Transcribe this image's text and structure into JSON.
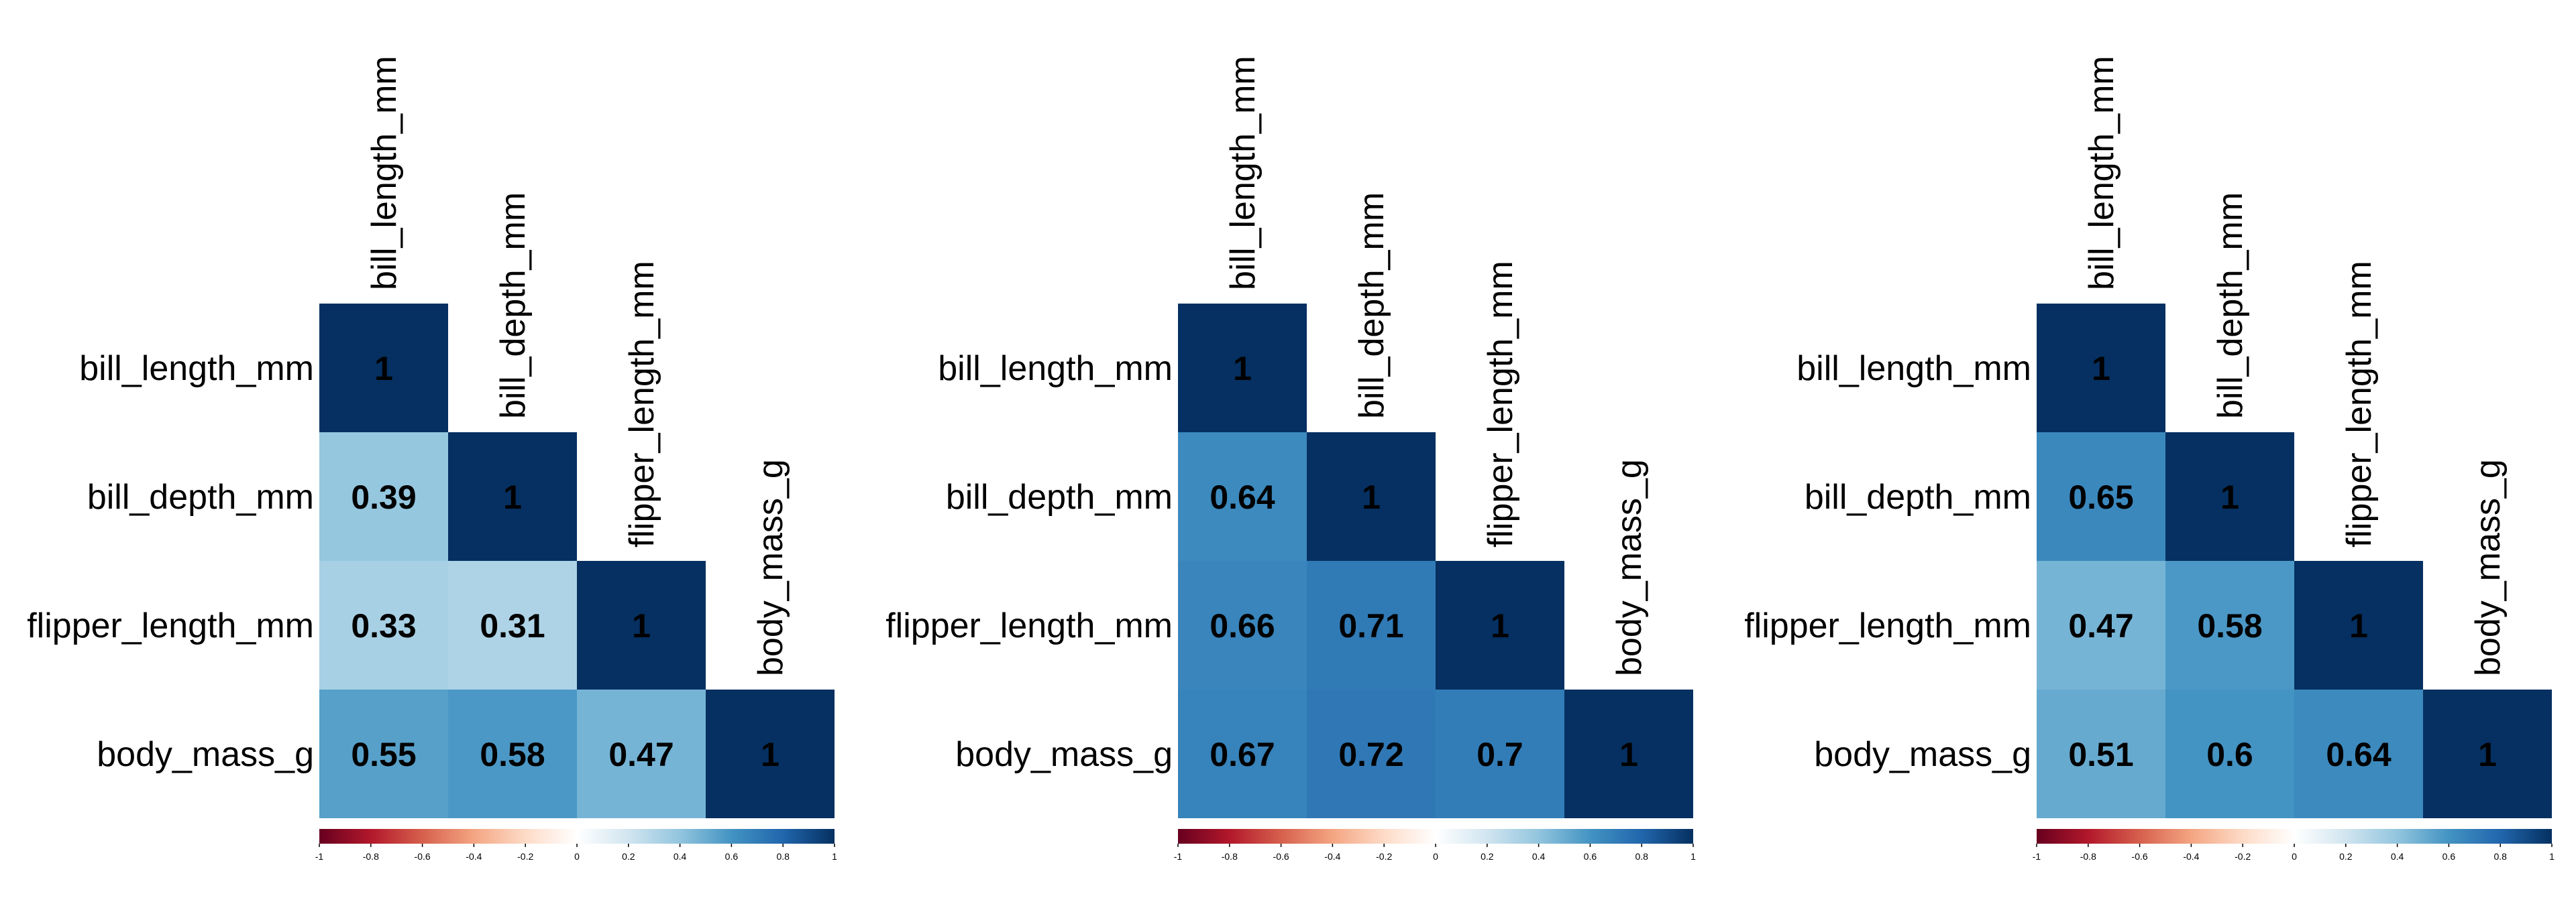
{
  "chart_data": [
    {
      "type": "heatmap",
      "variables": [
        "bill_length_mm",
        "bill_depth_mm",
        "flipper_length_mm",
        "body_mass_g"
      ],
      "lower_triangle": [
        [
          1
        ],
        [
          0.39,
          1
        ],
        [
          0.33,
          0.31,
          1
        ],
        [
          0.55,
          0.58,
          0.47,
          1
        ]
      ],
      "cell_labels": [
        [
          "1"
        ],
        [
          "0.39",
          "1"
        ],
        [
          "0.33",
          "0.31",
          "1"
        ],
        [
          "0.55",
          "0.58",
          "0.47",
          "1"
        ]
      ],
      "color_scale": {
        "range": [
          -1,
          1
        ],
        "ticks": [
          "-1",
          "-0.8",
          "-0.6",
          "-0.4",
          "-0.2",
          "0",
          "0.2",
          "0.4",
          "0.6",
          "0.8",
          "1"
        ]
      }
    },
    {
      "type": "heatmap",
      "variables": [
        "bill_length_mm",
        "bill_depth_mm",
        "flipper_length_mm",
        "body_mass_g"
      ],
      "lower_triangle": [
        [
          1
        ],
        [
          0.64,
          1
        ],
        [
          0.66,
          0.71,
          1
        ],
        [
          0.67,
          0.72,
          0.7,
          1
        ]
      ],
      "cell_labels": [
        [
          "1"
        ],
        [
          "0.64",
          "1"
        ],
        [
          "0.66",
          "0.71",
          "1"
        ],
        [
          "0.67",
          "0.72",
          "0.7",
          "1"
        ]
      ],
      "color_scale": {
        "range": [
          -1,
          1
        ],
        "ticks": [
          "-1",
          "-0.8",
          "-0.6",
          "-0.4",
          "-0.2",
          "0",
          "0.2",
          "0.4",
          "0.6",
          "0.8",
          "1"
        ]
      }
    },
    {
      "type": "heatmap",
      "variables": [
        "bill_length_mm",
        "bill_depth_mm",
        "flipper_length_mm",
        "body_mass_g"
      ],
      "lower_triangle": [
        [
          1
        ],
        [
          0.65,
          1
        ],
        [
          0.47,
          0.58,
          1
        ],
        [
          0.51,
          0.6,
          0.64,
          1
        ]
      ],
      "cell_labels": [
        [
          "1"
        ],
        [
          "0.65",
          "1"
        ],
        [
          "0.47",
          "0.58",
          "1"
        ],
        [
          "0.51",
          "0.6",
          "0.64",
          "1"
        ]
      ],
      "color_scale": {
        "range": [
          -1,
          1
        ],
        "ticks": [
          "-1",
          "-0.8",
          "-0.6",
          "-0.4",
          "-0.2",
          "0",
          "0.2",
          "0.4",
          "0.6",
          "0.8",
          "1"
        ]
      }
    }
  ],
  "colors": {
    "palette_RdBu": [
      "#67001f",
      "#b2182b",
      "#d6604d",
      "#f4a582",
      "#fddbc7",
      "#ffffff",
      "#d1e5f0",
      "#92c5de",
      "#4393c3",
      "#2166ac",
      "#053061"
    ],
    "cell_text": "#000000",
    "axis_text": "#000000"
  }
}
